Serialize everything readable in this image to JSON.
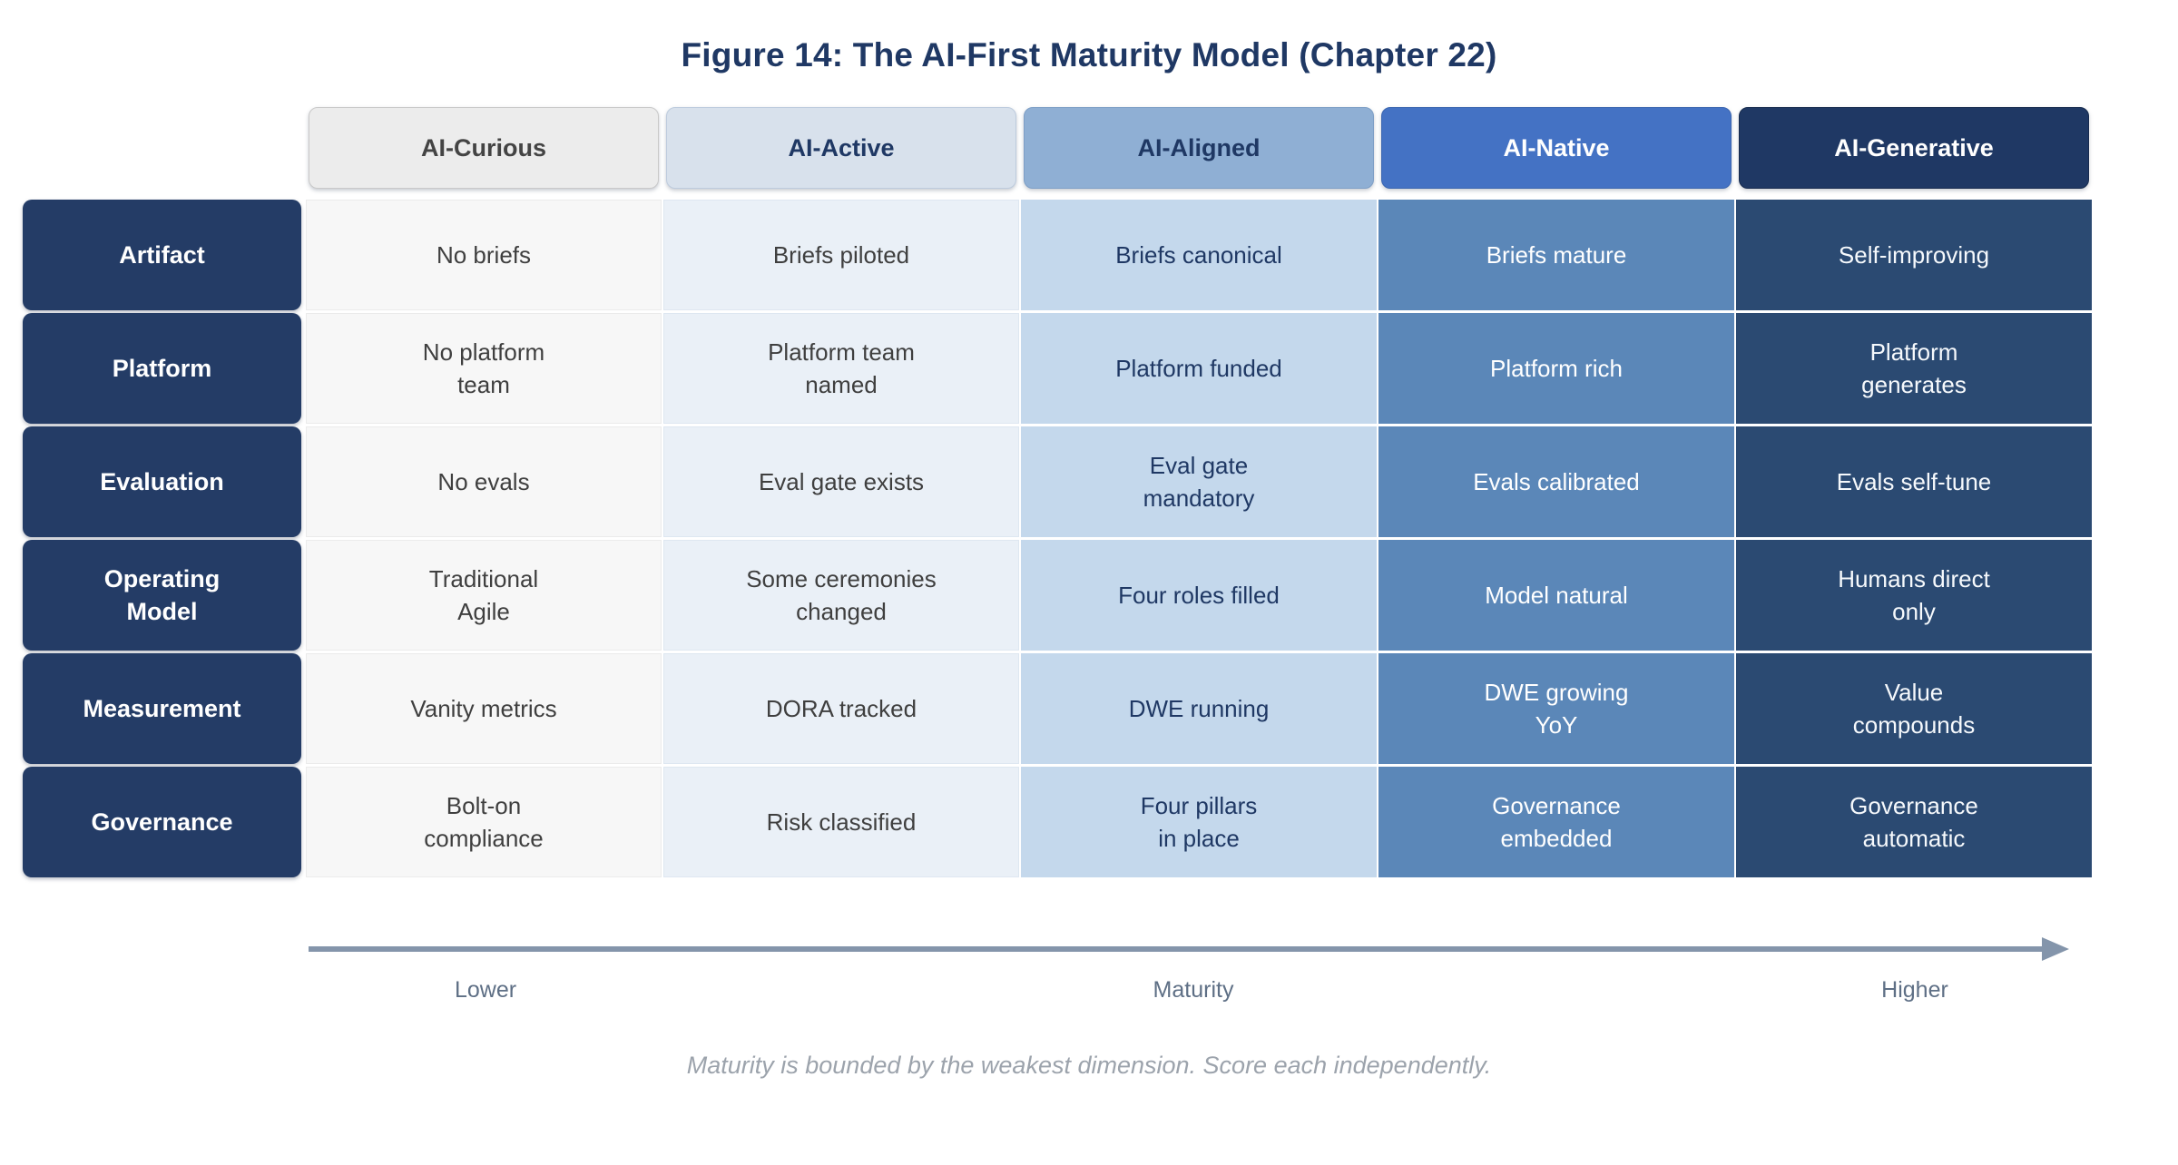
{
  "title": "Figure 14: The AI-First Maturity Model (Chapter 22)",
  "columns": [
    {
      "label": "AI-Curious",
      "header_bg": "#ECECEC",
      "header_text": "#444444",
      "cell_bg": "#F7F7F7",
      "cell_text": "#3F3F3F"
    },
    {
      "label": "AI-Active",
      "header_bg": "#D8E1EC",
      "header_text": "#1F3864",
      "cell_bg": "#EAF0F7",
      "cell_text": "#3F3F3F"
    },
    {
      "label": "AI-Aligned",
      "header_bg": "#8FAFD4",
      "header_text": "#1F3864",
      "cell_bg": "#C4D8EC",
      "cell_text": "#1F3864"
    },
    {
      "label": "AI-Native",
      "header_bg": "#4472C4",
      "header_text": "#FFFFFF",
      "cell_bg": "#5B87B8",
      "cell_text": "#FFFFFF"
    },
    {
      "label": "AI-Generative",
      "header_bg": "#1F3864",
      "header_text": "#FFFFFF",
      "cell_bg": "#2B4A72",
      "cell_text": "#FFFFFF"
    }
  ],
  "rows": [
    {
      "label": "Artifact",
      "cells": [
        "No briefs",
        "Briefs piloted",
        "Briefs canonical",
        "Briefs mature",
        "Self-improving"
      ]
    },
    {
      "label": "Platform",
      "cells": [
        "No platform\nteam",
        "Platform team\nnamed",
        "Platform funded",
        "Platform rich",
        "Platform\ngenerates"
      ]
    },
    {
      "label": "Evaluation",
      "cells": [
        "No evals",
        "Eval gate exists",
        "Eval gate\nmandatory",
        "Evals calibrated",
        "Evals self-tune"
      ]
    },
    {
      "label": "Operating\nModel",
      "cells": [
        "Traditional\nAgile",
        "Some ceremonies\nchanged",
        "Four roles filled",
        "Model natural",
        "Humans direct\nonly"
      ]
    },
    {
      "label": "Measurement",
      "cells": [
        "Vanity metrics",
        "DORA tracked",
        "DWE running",
        "DWE growing\nYoY",
        "Value\ncompounds"
      ]
    },
    {
      "label": "Governance",
      "cells": [
        "Bolt-on\ncompliance",
        "Risk classified",
        "Four pillars\nin place",
        "Governance\nembedded",
        "Governance\nautomatic"
      ]
    }
  ],
  "axis": {
    "lower_label": "Lower",
    "center_label": "Maturity",
    "higher_label": "Higher",
    "arrow_color": "#8495AB"
  },
  "footnote": "Maturity is bounded by the weakest dimension. Score each independently.",
  "palette": {
    "title_navy": "#1F3864",
    "row_header_navy": "#243C66",
    "footnote_gray": "#9CA3AC"
  }
}
